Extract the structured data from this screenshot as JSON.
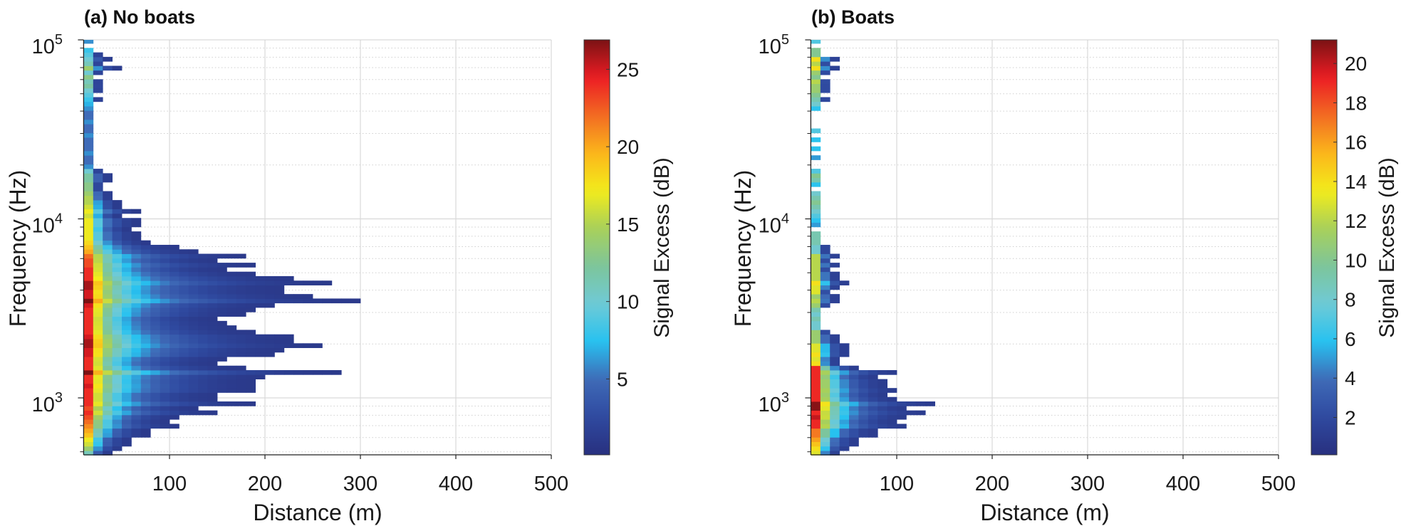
{
  "chart_data": [
    {
      "type": "heatmap",
      "title": "(a) No boats",
      "xlabel": "Distance (m)",
      "ylabel": "Frequency (Hz)",
      "xlim": [
        10,
        500
      ],
      "ylim": [
        480,
        100000
      ],
      "yscale": "log",
      "grid": true,
      "x_ticks": [
        "100",
        "200",
        "300",
        "400",
        "500"
      ],
      "y_ticks": [
        {
          "base": "10",
          "exp": "3"
        },
        {
          "base": "10",
          "exp": "4"
        },
        {
          "base": "10",
          "exp": "5"
        }
      ],
      "colorbar": {
        "label": "Signal Excess (dB)",
        "clim": [
          0.1,
          26.9
        ],
        "ticks": [
          "5",
          "10",
          "15",
          "20",
          "25"
        ]
      },
      "distance_bin_m": 10,
      "distance_start_m": 10,
      "freq_bin_log10_start": 2.68,
      "freq_bin_log10_step": 0.025,
      "max_distance_m": [
        40,
        50,
        60,
        60,
        80,
        80,
        110,
        100,
        110,
        150,
        130,
        190,
        150,
        150,
        190,
        190,
        190,
        200,
        280,
        180,
        150,
        160,
        210,
        220,
        260,
        230,
        230,
        190,
        170,
        160,
        150,
        180,
        190,
        210,
        300,
        250,
        220,
        220,
        270,
        230,
        190,
        160,
        190,
        150,
        180,
        130,
        110,
        80,
        70,
        70,
        60,
        70,
        70,
        50,
        70,
        50,
        50,
        40,
        40,
        30,
        30,
        40,
        40,
        30,
        20,
        20,
        20,
        20,
        20,
        20,
        20,
        20,
        20,
        20,
        20,
        20,
        20,
        20,
        20,
        30,
        20,
        30,
        30,
        30,
        20,
        30,
        50,
        30,
        40,
        30,
        20,
        0,
        20
      ],
      "near_field_se_db": [
        11,
        14,
        16,
        17,
        19,
        20,
        21,
        22,
        23,
        24,
        23,
        24,
        24,
        24,
        24,
        25,
        24,
        24,
        27,
        24,
        24,
        24,
        25,
        25,
        26,
        26,
        25,
        24,
        24,
        24,
        24,
        24,
        24,
        25,
        27,
        25,
        25,
        26,
        26,
        24,
        24,
        24,
        23,
        23,
        22,
        20,
        19,
        18,
        17,
        17,
        17,
        17,
        17,
        16,
        17,
        16,
        15,
        15,
        14,
        13,
        13,
        12,
        12,
        10,
        6,
        5,
        5,
        6,
        5,
        5,
        5,
        6,
        5,
        5,
        6,
        5,
        5,
        6,
        7,
        8,
        9,
        10,
        12,
        11,
        13,
        10,
        14,
        11,
        10,
        9,
        8,
        0,
        6
      ]
    },
    {
      "type": "heatmap",
      "title": "(b) Boats",
      "xlabel": "Distance (m)",
      "ylabel": "Frequency (Hz)",
      "xlim": [
        10,
        500
      ],
      "ylim": [
        480,
        100000
      ],
      "yscale": "log",
      "grid": true,
      "x_ticks": [
        "100",
        "200",
        "300",
        "400",
        "500"
      ],
      "y_ticks": [
        {
          "base": "10",
          "exp": "3"
        },
        {
          "base": "10",
          "exp": "4"
        },
        {
          "base": "10",
          "exp": "5"
        }
      ],
      "colorbar": {
        "label": "Signal Excess (dB)",
        "clim": [
          0.1,
          21.2
        ],
        "ticks": [
          "2",
          "4",
          "6",
          "8",
          "10",
          "12",
          "14",
          "16",
          "18",
          "20"
        ]
      },
      "distance_bin_m": 10,
      "distance_start_m": 10,
      "freq_bin_log10_start": 2.68,
      "freq_bin_log10_step": 0.025,
      "max_distance_m": [
        40,
        50,
        60,
        60,
        80,
        80,
        110,
        100,
        110,
        130,
        110,
        140,
        100,
        90,
        100,
        90,
        90,
        80,
        100,
        60,
        40,
        40,
        50,
        50,
        50,
        40,
        40,
        30,
        20,
        20,
        20,
        20,
        20,
        30,
        40,
        40,
        30,
        40,
        50,
        40,
        40,
        30,
        40,
        30,
        40,
        30,
        30,
        20,
        20,
        20,
        0,
        20,
        20,
        20,
        20,
        20,
        20,
        20,
        20,
        0,
        20,
        20,
        20,
        20,
        0,
        0,
        20,
        0,
        20,
        0,
        20,
        0,
        20,
        0,
        0,
        0,
        0,
        20,
        20,
        30,
        20,
        30,
        30,
        30,
        20,
        30,
        40,
        30,
        40,
        20,
        20,
        0,
        20
      ],
      "near_field_se_db": [
        13,
        14,
        15,
        16,
        17,
        17,
        19,
        19,
        20,
        19,
        21,
        21,
        19,
        19,
        19,
        19,
        19,
        19,
        19,
        19,
        14,
        13,
        14,
        13,
        13,
        11,
        11,
        11,
        8,
        8,
        9,
        8,
        9,
        11,
        12,
        11,
        13,
        13,
        14,
        12,
        12,
        12,
        12,
        12,
        12,
        8,
        8,
        9,
        9,
        9,
        0,
        5,
        6,
        7,
        8,
        9,
        10,
        9,
        8,
        0,
        6,
        9,
        10,
        7,
        0,
        0,
        5,
        0,
        6,
        0,
        6,
        0,
        7,
        0,
        0,
        0,
        0,
        6,
        8,
        9,
        10,
        11,
        11,
        12,
        10,
        11,
        14,
        12,
        14,
        10,
        10,
        0,
        7
      ]
    }
  ],
  "colormap": [
    "#28307f",
    "#2f4aa0",
    "#3f6ab7",
    "#27c2f0",
    "#6fcad6",
    "#7dc59b",
    "#a8d05a",
    "#f3ec1b",
    "#fbb61b",
    "#f26b22",
    "#ec1c24",
    "#7b1214"
  ],
  "colors": {
    "major_grid": "#d9d9d9",
    "minor_grid": "#cfcfcf",
    "axis": "#222222"
  }
}
